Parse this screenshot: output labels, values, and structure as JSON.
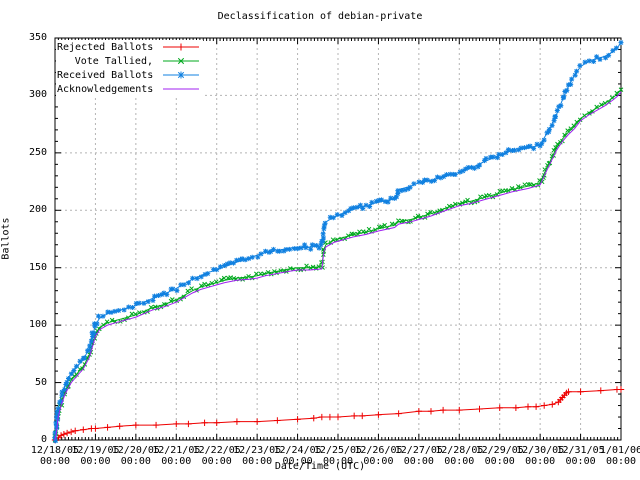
{
  "title": "Declassification of debian-private",
  "y_axis_label": "Ballots",
  "x_axis_label": "Date/Time (UTC)",
  "chart_data": {
    "type": "line",
    "title": "Declassification of debian-private",
    "xlabel": "Date/Time (UTC)",
    "ylabel": "Ballots",
    "ylim": [
      0,
      350
    ],
    "y_ticks": [
      0,
      50,
      100,
      150,
      200,
      250,
      300,
      350
    ],
    "y_minor_step": 10,
    "x_minor_per_day": 12,
    "grid": true,
    "grid_color": "#b4b4b4",
    "axis_color": "#000000",
    "legend_position": "top-left-inside",
    "x_tick_labels": [
      "12/18/05",
      "12/19/05",
      "12/20/05",
      "12/21/05",
      "12/22/05",
      "12/23/05",
      "12/24/05",
      "12/25/05",
      "12/26/05",
      "12/27/05",
      "12/28/05",
      "12/29/05",
      "12/30/05",
      "12/31/05",
      "1/01/06"
    ],
    "x_tick_sublabel": "00:00",
    "series": [
      {
        "name": "Rejected Ballots",
        "color": "#ee0000",
        "marker": "plus",
        "dense": false,
        "points": [
          [
            0,
            0
          ],
          [
            0.08,
            2
          ],
          [
            0.15,
            4
          ],
          [
            0.22,
            5
          ],
          [
            0.3,
            6
          ],
          [
            0.4,
            7
          ],
          [
            0.5,
            8
          ],
          [
            0.7,
            9
          ],
          [
            0.9,
            10
          ],
          [
            1.0,
            10
          ],
          [
            1.3,
            11
          ],
          [
            1.6,
            12
          ],
          [
            2.0,
            13
          ],
          [
            2.5,
            13
          ],
          [
            3.0,
            14
          ],
          [
            3.3,
            14
          ],
          [
            3.7,
            15
          ],
          [
            4.0,
            15
          ],
          [
            4.5,
            16
          ],
          [
            5.0,
            16
          ],
          [
            5.5,
            17
          ],
          [
            6.0,
            18
          ],
          [
            6.4,
            19
          ],
          [
            6.6,
            20
          ],
          [
            6.8,
            20
          ],
          [
            7.0,
            20
          ],
          [
            7.4,
            21
          ],
          [
            7.6,
            21
          ],
          [
            8.0,
            22
          ],
          [
            8.5,
            23
          ],
          [
            9.0,
            25
          ],
          [
            9.3,
            25
          ],
          [
            9.6,
            26
          ],
          [
            10.0,
            26
          ],
          [
            10.5,
            27
          ],
          [
            11.0,
            28
          ],
          [
            11.4,
            28
          ],
          [
            11.7,
            29
          ],
          [
            11.9,
            29
          ],
          [
            12.1,
            30
          ],
          [
            12.3,
            31
          ],
          [
            12.45,
            33
          ],
          [
            12.5,
            35
          ],
          [
            12.55,
            37
          ],
          [
            12.6,
            39
          ],
          [
            12.65,
            41
          ],
          [
            12.7,
            42
          ],
          [
            13.0,
            42
          ],
          [
            13.5,
            43
          ],
          [
            13.9,
            44
          ],
          [
            14.0,
            44
          ]
        ]
      },
      {
        "name": "Vote Tallied,",
        "color": "#00a81e",
        "marker": "cross",
        "dense": true,
        "points": [
          [
            0,
            0
          ],
          [
            0.04,
            8
          ],
          [
            0.08,
            22
          ],
          [
            0.15,
            32
          ],
          [
            0.25,
            42
          ],
          [
            0.4,
            52
          ],
          [
            0.55,
            58
          ],
          [
            0.7,
            64
          ],
          [
            0.85,
            74
          ],
          [
            1.0,
            92
          ],
          [
            1.1,
            98
          ],
          [
            1.3,
            102
          ],
          [
            1.5,
            104
          ],
          [
            1.7,
            106
          ],
          [
            1.9,
            108
          ],
          [
            2.0,
            109
          ],
          [
            2.2,
            112
          ],
          [
            2.4,
            115
          ],
          [
            2.7,
            118
          ],
          [
            3.0,
            122
          ],
          [
            3.2,
            126
          ],
          [
            3.4,
            130
          ],
          [
            3.6,
            133
          ],
          [
            3.8,
            135
          ],
          [
            4.0,
            137
          ],
          [
            4.2,
            139
          ],
          [
            4.5,
            141
          ],
          [
            4.8,
            142
          ],
          [
            5.0,
            143
          ],
          [
            5.2,
            145
          ],
          [
            5.5,
            147
          ],
          [
            5.8,
            149
          ],
          [
            6.0,
            150
          ],
          [
            6.3,
            150
          ],
          [
            6.6,
            151
          ],
          [
            6.65,
            166
          ],
          [
            6.7,
            170
          ],
          [
            6.9,
            174
          ],
          [
            7.1,
            176
          ],
          [
            7.4,
            179
          ],
          [
            7.7,
            181
          ],
          [
            8.0,
            184
          ],
          [
            8.4,
            187
          ],
          [
            8.5,
            190
          ],
          [
            8.8,
            192
          ],
          [
            9.0,
            194
          ],
          [
            9.3,
            197
          ],
          [
            9.6,
            201
          ],
          [
            10.0,
            206
          ],
          [
            10.3,
            208
          ],
          [
            10.6,
            211
          ],
          [
            11.0,
            215
          ],
          [
            11.3,
            218
          ],
          [
            11.7,
            221
          ],
          [
            12.0,
            224
          ],
          [
            12.1,
            232
          ],
          [
            12.25,
            243
          ],
          [
            12.4,
            254
          ],
          [
            12.55,
            262
          ],
          [
            12.7,
            268
          ],
          [
            12.85,
            273
          ],
          [
            13.0,
            280
          ],
          [
            13.2,
            285
          ],
          [
            13.4,
            289
          ],
          [
            13.6,
            293
          ],
          [
            13.8,
            298
          ],
          [
            13.9,
            301
          ],
          [
            14.0,
            305
          ]
        ]
      },
      {
        "name": "Received Ballots",
        "color": "#1080e0",
        "marker": "star",
        "dense": true,
        "points": [
          [
            0,
            0
          ],
          [
            0.04,
            12
          ],
          [
            0.08,
            28
          ],
          [
            0.15,
            38
          ],
          [
            0.25,
            48
          ],
          [
            0.4,
            58
          ],
          [
            0.55,
            64
          ],
          [
            0.7,
            70
          ],
          [
            0.85,
            80
          ],
          [
            1.0,
            100
          ],
          [
            1.1,
            106
          ],
          [
            1.3,
            110
          ],
          [
            1.5,
            112
          ],
          [
            1.7,
            114
          ],
          [
            1.9,
            116
          ],
          [
            2.0,
            117
          ],
          [
            2.2,
            120
          ],
          [
            2.4,
            123
          ],
          [
            2.7,
            127
          ],
          [
            3.0,
            132
          ],
          [
            3.2,
            136
          ],
          [
            3.4,
            140
          ],
          [
            3.6,
            143
          ],
          [
            3.8,
            146
          ],
          [
            4.0,
            148
          ],
          [
            4.2,
            151
          ],
          [
            4.5,
            155
          ],
          [
            4.8,
            158
          ],
          [
            5.0,
            161
          ],
          [
            5.2,
            163
          ],
          [
            5.5,
            165
          ],
          [
            5.8,
            167
          ],
          [
            6.0,
            168
          ],
          [
            6.3,
            168
          ],
          [
            6.6,
            169
          ],
          [
            6.65,
            185
          ],
          [
            6.7,
            190
          ],
          [
            6.9,
            194
          ],
          [
            7.1,
            197
          ],
          [
            7.4,
            201
          ],
          [
            7.7,
            204
          ],
          [
            8.0,
            207
          ],
          [
            8.4,
            210
          ],
          [
            8.5,
            218
          ],
          [
            8.8,
            221
          ],
          [
            9.0,
            224
          ],
          [
            9.3,
            226
          ],
          [
            9.6,
            229
          ],
          [
            10.0,
            233
          ],
          [
            10.3,
            237
          ],
          [
            10.6,
            242
          ],
          [
            11.0,
            248
          ],
          [
            11.3,
            252
          ],
          [
            11.7,
            254
          ],
          [
            12.0,
            257
          ],
          [
            12.1,
            263
          ],
          [
            12.25,
            272
          ],
          [
            12.4,
            283
          ],
          [
            12.55,
            296
          ],
          [
            12.7,
            308
          ],
          [
            12.85,
            318
          ],
          [
            13.0,
            325
          ],
          [
            13.2,
            330
          ],
          [
            13.4,
            332
          ],
          [
            13.6,
            334
          ],
          [
            13.8,
            338
          ],
          [
            13.9,
            341
          ],
          [
            14.0,
            346
          ]
        ]
      },
      {
        "name": "Acknowledgements",
        "color": "#a020f0",
        "marker": "none",
        "dense": false,
        "points": [
          [
            0,
            0
          ],
          [
            0.04,
            7
          ],
          [
            0.08,
            20
          ],
          [
            0.15,
            30
          ],
          [
            0.25,
            40
          ],
          [
            0.4,
            50
          ],
          [
            0.55,
            56
          ],
          [
            0.7,
            62
          ],
          [
            0.85,
            72
          ],
          [
            1.0,
            90
          ],
          [
            1.1,
            96
          ],
          [
            1.3,
            100
          ],
          [
            1.5,
            102
          ],
          [
            1.7,
            104
          ],
          [
            1.9,
            106
          ],
          [
            2.0,
            107
          ],
          [
            2.2,
            110
          ],
          [
            2.4,
            113
          ],
          [
            2.7,
            116
          ],
          [
            3.0,
            120
          ],
          [
            3.2,
            124
          ],
          [
            3.4,
            128
          ],
          [
            3.6,
            131
          ],
          [
            3.8,
            133
          ],
          [
            4.0,
            135
          ],
          [
            4.2,
            137
          ],
          [
            4.5,
            139
          ],
          [
            4.8,
            140
          ],
          [
            5.0,
            141
          ],
          [
            5.2,
            143
          ],
          [
            5.5,
            145
          ],
          [
            5.8,
            147
          ],
          [
            6.0,
            148
          ],
          [
            6.3,
            148
          ],
          [
            6.6,
            149
          ],
          [
            6.65,
            164
          ],
          [
            6.7,
            168
          ],
          [
            6.9,
            172
          ],
          [
            7.1,
            174
          ],
          [
            7.4,
            177
          ],
          [
            7.7,
            179
          ],
          [
            8.0,
            182
          ],
          [
            8.4,
            185
          ],
          [
            8.5,
            188
          ],
          [
            8.8,
            190
          ],
          [
            9.0,
            192
          ],
          [
            9.3,
            195
          ],
          [
            9.6,
            199
          ],
          [
            10.0,
            204
          ],
          [
            10.3,
            206
          ],
          [
            10.6,
            209
          ],
          [
            11.0,
            213
          ],
          [
            11.3,
            216
          ],
          [
            11.7,
            219
          ],
          [
            12.0,
            222
          ],
          [
            12.1,
            230
          ],
          [
            12.25,
            241
          ],
          [
            12.4,
            252
          ],
          [
            12.55,
            260
          ],
          [
            12.7,
            266
          ],
          [
            12.85,
            271
          ],
          [
            13.0,
            278
          ],
          [
            13.2,
            283
          ],
          [
            13.4,
            287
          ],
          [
            13.6,
            291
          ],
          [
            13.8,
            296
          ],
          [
            13.9,
            299
          ],
          [
            14.0,
            303
          ]
        ]
      }
    ]
  }
}
